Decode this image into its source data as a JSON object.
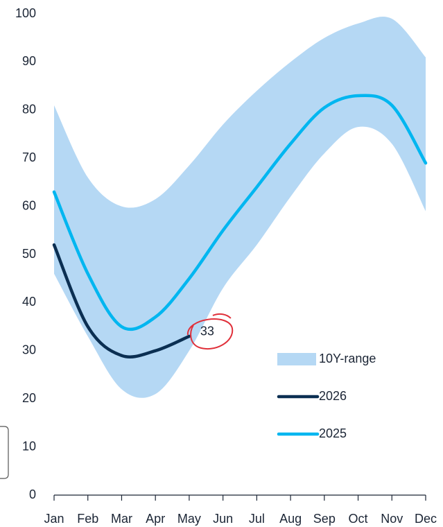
{
  "chart_data": {
    "type": "line",
    "categories": [
      "Jan",
      "Feb",
      "Mar",
      "Apr",
      "May",
      "Jun",
      "Jul",
      "Aug",
      "Sep",
      "Oct",
      "Nov",
      "Dec"
    ],
    "range": {
      "name": "10Y-range",
      "color": "#b5d8f4",
      "low": [
        46,
        33,
        22,
        21,
        30,
        43,
        52,
        62,
        71,
        76.5,
        73,
        59
      ],
      "high": [
        81,
        66,
        60,
        61.5,
        68.5,
        77,
        84,
        90,
        95,
        98,
        99,
        91
      ]
    },
    "series": [
      {
        "name": "2026",
        "color": "#0b2f52",
        "values": [
          52,
          35,
          29,
          30,
          33,
          null,
          null,
          null,
          null,
          null,
          null,
          null
        ]
      },
      {
        "name": "2025",
        "color": "#00b6f0",
        "values": [
          63,
          46,
          35,
          37,
          45,
          55,
          64,
          73,
          80.5,
          83,
          81,
          69
        ]
      }
    ],
    "annotation": {
      "value": 33,
      "label": "33"
    },
    "ylim": [
      0,
      100
    ],
    "yticks": [
      0,
      10,
      20,
      30,
      40,
      50,
      60,
      70,
      80,
      90,
      100
    ]
  }
}
